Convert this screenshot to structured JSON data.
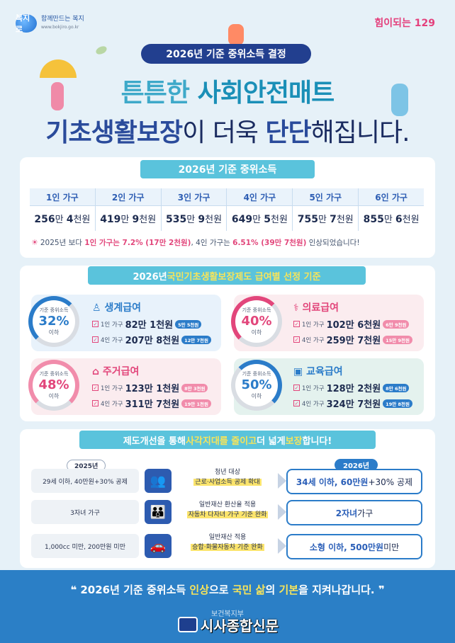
{
  "header": {
    "logo_left_mark": "복지로",
    "logo_left_tagline": "함께만드는 복지",
    "logo_left_url": "www.bokjiro.go.kr",
    "logo_right": "힘이되는 129",
    "badge": "2026년 기준 중위소득 결정",
    "title_line1_prefix": "튼튼한 ",
    "title_line1_hl": "사회안전매트",
    "title_line2_a": "기초생활보장",
    "title_line2_b": "이 더욱 ",
    "title_line2_c": "단단",
    "title_line2_d": "해집니다."
  },
  "median_income": {
    "ribbon": "2026년 기준 중위소득",
    "headers": [
      "1인 가구",
      "2인 가구",
      "3인 가구",
      "4인 가구",
      "5인 가구",
      "6인 가구"
    ],
    "rows": [
      {
        "man": "256",
        "cheon": "4"
      },
      {
        "man": "419",
        "cheon": "9"
      },
      {
        "man": "535",
        "cheon": "9"
      },
      {
        "man": "649",
        "cheon": "5"
      },
      {
        "man": "755",
        "cheon": "7"
      },
      {
        "man": "855",
        "cheon": "6"
      }
    ],
    "unit_man": "만 ",
    "unit_cheon": "천원",
    "note_a": "2025년 보다 ",
    "note_b": "1인 가구는 ",
    "note_c": "7.2% (17만 2천원)",
    "note_d": ", 4인 가구는 ",
    "note_e": "6.51% (39만 7천원)",
    "note_f": " 인상되었습니다!"
  },
  "criteria": {
    "ribbon_a": "2026년 ",
    "ribbon_b": "국민기초생활보장제도 급여별 선정 기준",
    "ring_top": "기준 중위소득",
    "ring_bottom": "이하",
    "benefits": [
      {
        "name": "생계급여",
        "pct": "32%",
        "l1": "1인 가구",
        "a1": "82만 1천원",
        "t1": "5만 5천원",
        "l2": "4인 가구",
        "a2": "207만 8천원",
        "t2": "12만 7천원"
      },
      {
        "name": "의료급여",
        "pct": "40%",
        "l1": "1인 가구",
        "a1": "102만 6천원",
        "t1": "6만 9천원",
        "l2": "4인 가구",
        "a2": "259만 7천원",
        "t2": "15만 9천원"
      },
      {
        "name": "주거급여",
        "pct": "48%",
        "l1": "1인 가구",
        "a1": "123만 1천원",
        "t1": "8만 3천원",
        "l2": "4인 가구",
        "a2": "311만 7천원",
        "t2": "19만 1천원"
      },
      {
        "name": "교육급여",
        "pct": "50%",
        "l1": "1인 가구",
        "a1": "128만 2천원",
        "t1": "8만 6천원",
        "l2": "4인 가구",
        "a2": "324만 7천원",
        "t2": "19만 8천원"
      }
    ]
  },
  "improvements": {
    "ribbon_a": "제도개선을 통해 ",
    "ribbon_b": "사각지대를 줄이고",
    "ribbon_c": " 더 넓게 ",
    "ribbon_d": "보장",
    "ribbon_e": "합니다!",
    "old_year": "2025년",
    "new_year": "2026년",
    "rows": [
      {
        "old": "29세 이하, 40만원+30% 공제",
        "mid1": "청년 대상",
        "mid2": "근로·사업소득 공제 확대",
        "new_b": "34세 이하, 60만원",
        "new_rest": "+30% 공제"
      },
      {
        "old": "3자녀 가구",
        "mid1": "일반재산 환산율 적용",
        "mid2": "자동차 다자녀 가구 기준 완화",
        "new_b": "2자녀",
        "new_rest": " 가구"
      },
      {
        "old": "1,000cc 미만, 200만원 미만",
        "mid1": "일반재산 적용",
        "mid2": "승합·화물자동차 기준 완화",
        "new_b": "소형 이하, 500만원",
        "new_rest": " 미만"
      }
    ]
  },
  "footer": {
    "slogan_a": "2026년 기준 중위소득 ",
    "slogan_b": "인상",
    "slogan_c": "으로 ",
    "slogan_d": "국민 삶",
    "slogan_e": "의 ",
    "slogan_f": "기본",
    "slogan_g": "을 지켜나갑니다.",
    "ministry": "보건복지부",
    "press": "시사종합신문"
  }
}
